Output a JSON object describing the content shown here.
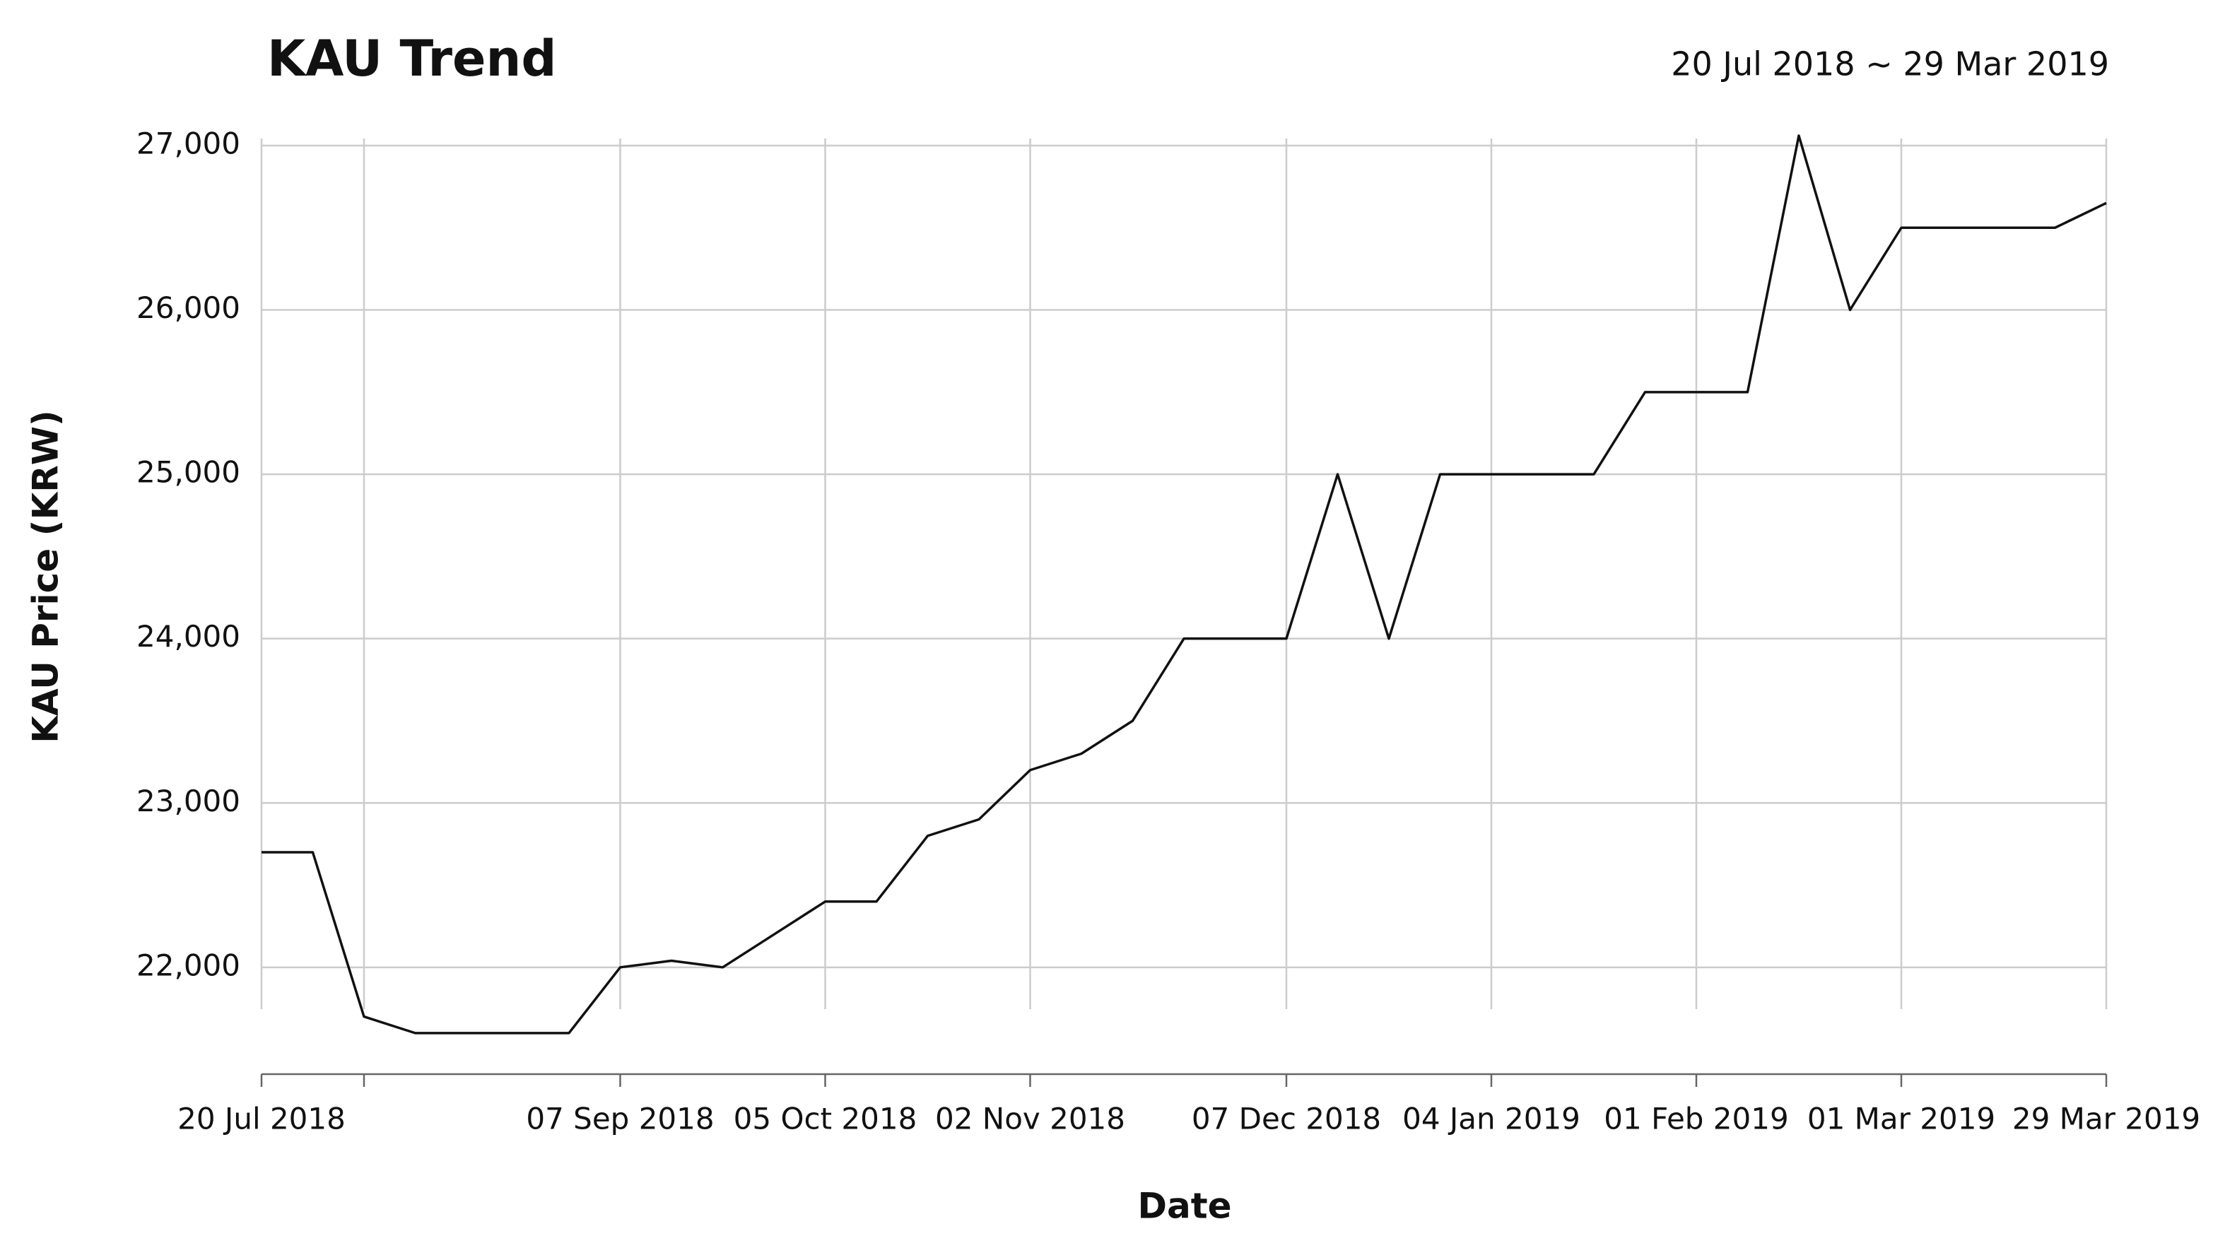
{
  "chart_data": {
    "type": "line",
    "title": "KAU Trend",
    "subtitle": "20 Jul 2018 ~ 29 Mar 2019",
    "x_label": "Date",
    "y_label": "KAU Price (KRW)",
    "x": [
      "20 Jul 2018",
      "27 Jul 2018",
      "03 Aug 2018",
      "10 Aug 2018",
      "17 Aug 2018",
      "24 Aug 2018",
      "31 Aug 2018",
      "07 Sep 2018",
      "14 Sep 2018",
      "21 Sep 2018",
      "28 Sep 2018",
      "05 Oct 2018",
      "12 Oct 2018",
      "19 Oct 2018",
      "26 Oct 2018",
      "02 Nov 2018",
      "09 Nov 2018",
      "16 Nov 2018",
      "23 Nov 2018",
      "30 Nov 2018",
      "07 Dec 2018",
      "14 Dec 2018",
      "21 Dec 2018",
      "28 Dec 2018",
      "04 Jan 2019",
      "11 Jan 2019",
      "18 Jan 2019",
      "25 Jan 2019",
      "01 Feb 2019",
      "08 Feb 2019",
      "15 Feb 2019",
      "22 Feb 2019",
      "01 Mar 2019",
      "08 Mar 2019",
      "15 Mar 2019",
      "22 Mar 2019",
      "29 Mar 2019"
    ],
    "series": [
      {
        "name": "KAU Price",
        "color": "#111111",
        "values": [
          22700,
          22700,
          21700,
          21600,
          21600,
          21600,
          21600,
          22000,
          22040,
          22000,
          22200,
          22400,
          22400,
          22800,
          22900,
          23200,
          23300,
          23500,
          24000,
          24000,
          24000,
          25000,
          24000,
          25000,
          25000,
          25000,
          25000,
          25500,
          25500,
          25500,
          27060,
          26000,
          26500,
          26500,
          26500,
          26500,
          26650
        ]
      }
    ],
    "ylim": [
      21350,
      27060
    ],
    "yticks": [
      {
        "value": 22000,
        "label": "22,000"
      },
      {
        "value": 23000,
        "label": "23,000"
      },
      {
        "value": 24000,
        "label": "24,000"
      },
      {
        "value": 25000,
        "label": "25,000"
      },
      {
        "value": 26000,
        "label": "26,000"
      },
      {
        "value": 27000,
        "label": "27,000"
      }
    ],
    "xticks": [
      "20 Jul 2018",
      {
        "value": "03 Aug 2018",
        "label": null
      },
      "07 Sep 2018",
      "05 Oct 2018",
      "02 Nov 2018",
      "07 Dec 2018",
      "04 Jan 2019",
      "01 Feb 2019",
      "01 Mar 2019",
      "29 Mar 2019"
    ],
    "grid": true
  }
}
